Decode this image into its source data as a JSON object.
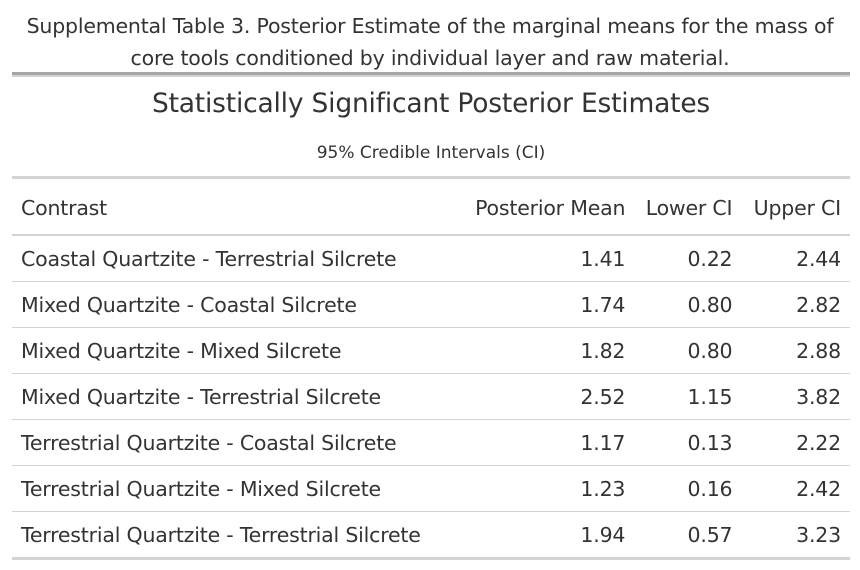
{
  "caption": {
    "line1": "Supplemental Table 3. Posterior Estimate of the marginal means for the mass of",
    "line2": "core tools conditioned by individual layer and raw material."
  },
  "table": {
    "title": "Statistically Significant Posterior Estimates",
    "subtitle": "95% Credible Intervals (CI)",
    "columns": [
      "Contrast",
      "Posterior Mean",
      "Lower CI",
      "Upper CI"
    ],
    "rows": [
      [
        "Coastal Quartzite - Terrestrial Silcrete",
        "1.41",
        "0.22",
        "2.44"
      ],
      [
        "Mixed Quartzite - Coastal Silcrete",
        "1.74",
        "0.80",
        "2.82"
      ],
      [
        "Mixed Quartzite - Mixed Silcrete",
        "1.82",
        "0.80",
        "2.88"
      ],
      [
        "Mixed Quartzite - Terrestrial Silcrete",
        "2.52",
        "1.15",
        "3.82"
      ],
      [
        "Terrestrial Quartzite - Coastal Silcrete",
        "1.17",
        "0.13",
        "2.22"
      ],
      [
        "Terrestrial Quartzite - Mixed Silcrete",
        "1.23",
        "0.16",
        "2.42"
      ],
      [
        "Terrestrial Quartzite - Terrestrial Silcrete",
        "1.94",
        "0.57",
        "3.23"
      ]
    ]
  },
  "colors": {
    "text": "#333333",
    "rule": "#a6a6a6",
    "gridline": "#d3d3d3"
  }
}
